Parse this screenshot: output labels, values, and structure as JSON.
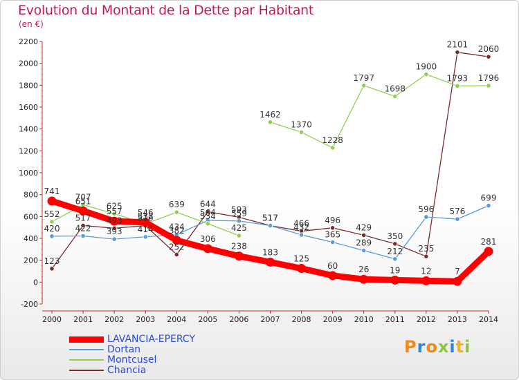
{
  "title": "Evolution du Montant de la Dette par Habitant",
  "unit": "(en €)",
  "logo": "Proxiti",
  "chart_data": {
    "type": "line",
    "x": [
      "2000",
      "2001",
      "2002",
      "2003",
      "2004",
      "2005",
      "2006",
      "2007",
      "2008",
      "2009",
      "2010",
      "2011",
      "2012",
      "2013",
      "2014"
    ],
    "ylim": [
      -200,
      2200
    ],
    "yticks": [
      -200,
      0,
      200,
      400,
      600,
      800,
      1000,
      1200,
      1400,
      1600,
      1800,
      2000,
      2200
    ],
    "grid": false,
    "legend": "bottom-left",
    "series": [
      {
        "name": "LAVANCIA-EPERCY",
        "color": "#ff0000",
        "width": 9,
        "values": [
          741,
          651,
          557,
          546,
          382,
          306,
          238,
          183,
          125,
          60,
          26,
          19,
          12,
          7,
          281
        ]
      },
      {
        "name": "Dortan",
        "color": "#5b9bd5",
        "width": 1.3,
        "values": [
          420,
          422,
          393,
          414,
          434,
          564,
          559,
          517,
          432,
          365,
          289,
          212,
          596,
          576,
          699
        ]
      },
      {
        "name": "Montcusel",
        "color": "#8fd14f",
        "width": 1.3,
        "values": [
          552,
          707,
          625,
          533,
          639,
          534,
          425,
          null,
          null,
          null,
          null,
          null,
          null,
          null,
          null
        ],
        "values2": [
          null,
          null,
          null,
          null,
          null,
          null,
          null,
          1462,
          1370,
          1228,
          1797,
          1698,
          1900,
          1793,
          1796
        ]
      },
      {
        "name": "Chancia",
        "color": "#7b2c2c",
        "width": 1.3,
        "values": [
          123,
          517,
          493,
          516,
          252,
          644,
          593,
          517,
          466,
          496,
          429,
          350,
          235,
          2101,
          2060
        ]
      }
    ]
  }
}
